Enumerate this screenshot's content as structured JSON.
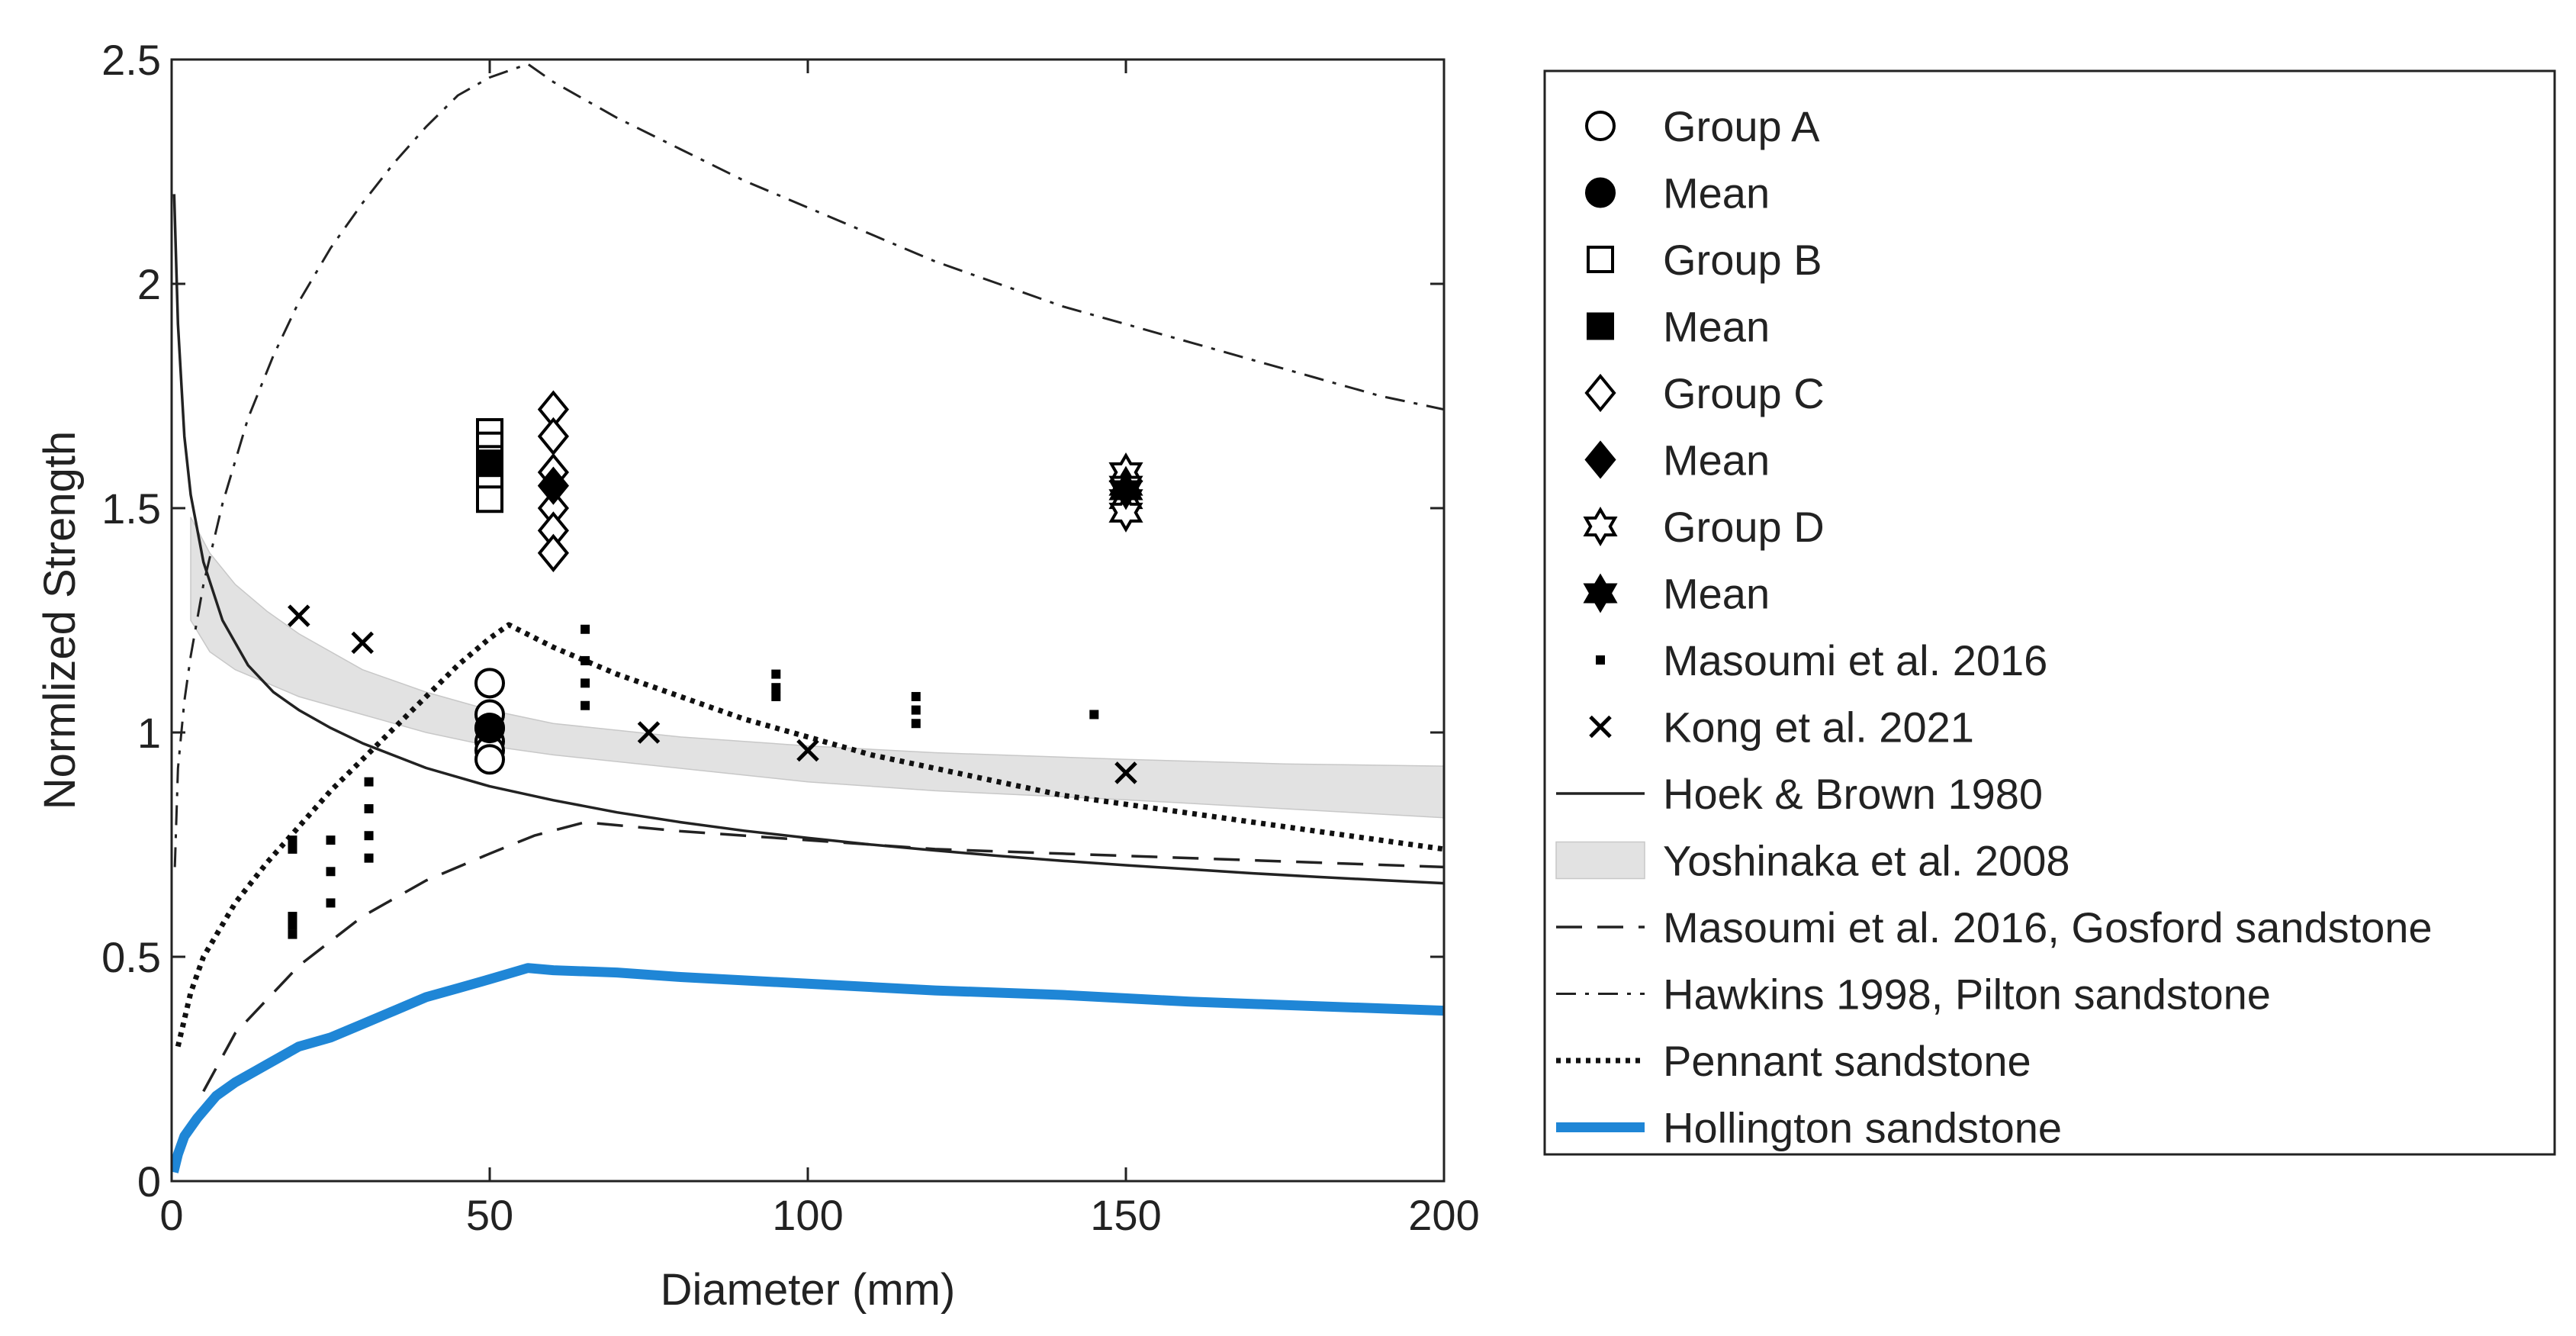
{
  "chart_data": {
    "type": "scatter",
    "title": "",
    "xlabel": "Diameter (mm)",
    "ylabel": "Normlized Strength",
    "xlim": [
      0,
      200
    ],
    "ylim": [
      0,
      2.5
    ],
    "xticks": [
      "0",
      "50",
      "100",
      "150",
      "200"
    ],
    "yticks": [
      "0",
      "0.5",
      "1",
      "1.5",
      "2",
      "2.5"
    ],
    "grid": false,
    "legend_position": "outside-right",
    "colors": {
      "axis": "#222222",
      "marker": "#000000",
      "band": "#e2e2e2",
      "hollington": "#1f86d6"
    },
    "series": [
      {
        "name": "Group A",
        "kind": "scatter",
        "marker": "circle-open",
        "points": [
          [
            50,
            1.11
          ],
          [
            50,
            1.04
          ],
          [
            50,
            1.01
          ],
          [
            50,
            0.98
          ],
          [
            50,
            0.96
          ],
          [
            50,
            0.94
          ]
        ]
      },
      {
        "name": "Mean",
        "kind": "scatter",
        "marker": "circle-filled",
        "points": [
          [
            50,
            1.01
          ]
        ]
      },
      {
        "name": "Group B",
        "kind": "scatter",
        "marker": "square-open",
        "points": [
          [
            50,
            1.67
          ],
          [
            50,
            1.64
          ],
          [
            50,
            1.61
          ],
          [
            50,
            1.58
          ],
          [
            50,
            1.55
          ],
          [
            50,
            1.52
          ]
        ]
      },
      {
        "name": "Mean",
        "kind": "scatter",
        "marker": "square-filled",
        "points": [
          [
            50,
            1.6
          ]
        ]
      },
      {
        "name": "Group C",
        "kind": "scatter",
        "marker": "diamond-open",
        "points": [
          [
            60,
            1.72
          ],
          [
            60,
            1.66
          ],
          [
            60,
            1.58
          ],
          [
            60,
            1.5
          ],
          [
            60,
            1.45
          ],
          [
            60,
            1.4
          ]
        ]
      },
      {
        "name": "Mean",
        "kind": "scatter",
        "marker": "diamond-filled",
        "points": [
          [
            60,
            1.55
          ]
        ]
      },
      {
        "name": "Group D",
        "kind": "scatter",
        "marker": "hexagram-open",
        "points": [
          [
            150,
            1.58
          ],
          [
            150,
            1.55
          ],
          [
            150,
            1.52
          ],
          [
            150,
            1.49
          ]
        ]
      },
      {
        "name": "Mean",
        "kind": "scatter",
        "marker": "hexagram-filled",
        "points": [
          [
            150,
            1.54
          ]
        ]
      },
      {
        "name": "Masoumi et al. 2016",
        "kind": "scatter",
        "marker": "dot",
        "points": [
          [
            19,
            0.76
          ],
          [
            19,
            0.74
          ],
          [
            19,
            0.59
          ],
          [
            19,
            0.57
          ],
          [
            19,
            0.55
          ],
          [
            25,
            0.76
          ],
          [
            25,
            0.69
          ],
          [
            25,
            0.62
          ],
          [
            31,
            0.89
          ],
          [
            31,
            0.83
          ],
          [
            31,
            0.77
          ],
          [
            31,
            0.72
          ],
          [
            65,
            1.23
          ],
          [
            65,
            1.16
          ],
          [
            65,
            1.11
          ],
          [
            65,
            1.06
          ],
          [
            95,
            1.13
          ],
          [
            95,
            1.1
          ],
          [
            95,
            1.08
          ],
          [
            117,
            1.08
          ],
          [
            117,
            1.05
          ],
          [
            117,
            1.02
          ],
          [
            145,
            1.04
          ]
        ]
      },
      {
        "name": "Kong et al. 2021",
        "kind": "scatter",
        "marker": "x",
        "points": [
          [
            20,
            1.26
          ],
          [
            30,
            1.2
          ],
          [
            75,
            1.0
          ],
          [
            100,
            0.96
          ],
          [
            150,
            0.91
          ]
        ]
      },
      {
        "name": "Hoek & Brown 1980",
        "kind": "line",
        "style": "solid",
        "x": [
          0.4,
          1,
          2,
          3,
          5,
          8,
          12,
          16,
          20,
          25,
          30,
          40,
          50,
          60,
          70,
          80,
          90,
          100,
          110,
          120,
          130,
          140,
          150,
          160,
          170,
          180,
          190,
          200
        ],
        "values": [
          2.2,
          1.91,
          1.66,
          1.53,
          1.38,
          1.25,
          1.15,
          1.09,
          1.05,
          1.01,
          0.976,
          0.921,
          0.88,
          0.849,
          0.822,
          0.8,
          0.781,
          0.765,
          0.75,
          0.737,
          0.725,
          0.714,
          0.704,
          0.695,
          0.686,
          0.678,
          0.671,
          0.664
        ]
      },
      {
        "name": "Yoshinaka et al. 2008",
        "kind": "band",
        "x": [
          3,
          6,
          10,
          15,
          20,
          30,
          40,
          50,
          60,
          80,
          100,
          120,
          150,
          175,
          200
        ],
        "upper": [
          1.48,
          1.4,
          1.33,
          1.27,
          1.22,
          1.14,
          1.09,
          1.05,
          1.02,
          0.99,
          0.97,
          0.955,
          0.94,
          0.93,
          0.925
        ],
        "lower": [
          1.25,
          1.18,
          1.14,
          1.11,
          1.08,
          1.04,
          1.0,
          0.97,
          0.95,
          0.92,
          0.89,
          0.87,
          0.85,
          0.83,
          0.81
        ]
      },
      {
        "name": "Masoumi et al. 2016, Gosford sandstone",
        "kind": "line",
        "style": "dashed",
        "x": [
          5,
          10,
          20,
          30,
          40,
          50,
          57,
          65,
          80,
          100,
          120,
          140,
          160,
          180,
          200
        ],
        "values": [
          0.2,
          0.33,
          0.48,
          0.59,
          0.67,
          0.73,
          0.77,
          0.8,
          0.78,
          0.76,
          0.74,
          0.73,
          0.72,
          0.71,
          0.7
        ]
      },
      {
        "name": "Hawkins 1998, Pilton sandstone",
        "kind": "line",
        "style": "dashdot",
        "x": [
          0.5,
          1,
          2,
          3,
          5,
          8,
          12,
          16,
          20,
          25,
          30,
          35,
          40,
          45,
          50,
          56,
          60,
          70,
          80,
          90,
          100,
          110,
          120,
          130,
          140,
          150,
          160,
          170,
          180,
          190,
          200
        ],
        "values": [
          0.7,
          0.92,
          1.07,
          1.17,
          1.33,
          1.51,
          1.7,
          1.84,
          1.96,
          2.08,
          2.18,
          2.27,
          2.35,
          2.42,
          2.46,
          2.49,
          2.45,
          2.37,
          2.3,
          2.23,
          2.17,
          2.11,
          2.05,
          2.0,
          1.95,
          1.91,
          1.87,
          1.83,
          1.79,
          1.75,
          1.72
        ]
      },
      {
        "name": "Pennant sandstone",
        "kind": "line",
        "style": "dotted",
        "x": [
          1,
          3,
          5,
          10,
          15,
          20,
          25,
          30,
          35,
          40,
          45,
          50,
          53,
          60,
          70,
          80,
          90,
          100,
          110,
          120,
          130,
          140,
          150,
          160,
          170,
          180,
          190,
          200
        ],
        "values": [
          0.3,
          0.42,
          0.5,
          0.62,
          0.71,
          0.79,
          0.87,
          0.94,
          1.01,
          1.08,
          1.15,
          1.21,
          1.24,
          1.19,
          1.13,
          1.08,
          1.03,
          0.99,
          0.95,
          0.92,
          0.89,
          0.86,
          0.84,
          0.82,
          0.8,
          0.78,
          0.76,
          0.74
        ]
      },
      {
        "name": "Hollington sandstone",
        "kind": "line",
        "style": "solid-thick",
        "x": [
          0.3,
          1,
          2,
          4,
          7,
          10,
          15,
          20,
          25,
          30,
          35,
          40,
          45,
          50,
          56,
          60,
          70,
          80,
          100,
          120,
          140,
          160,
          180,
          200
        ],
        "values": [
          0.02,
          0.06,
          0.1,
          0.14,
          0.19,
          0.22,
          0.26,
          0.3,
          0.32,
          0.35,
          0.38,
          0.41,
          0.43,
          0.45,
          0.475,
          0.47,
          0.465,
          0.455,
          0.44,
          0.425,
          0.415,
          0.4,
          0.39,
          0.38
        ]
      }
    ]
  }
}
